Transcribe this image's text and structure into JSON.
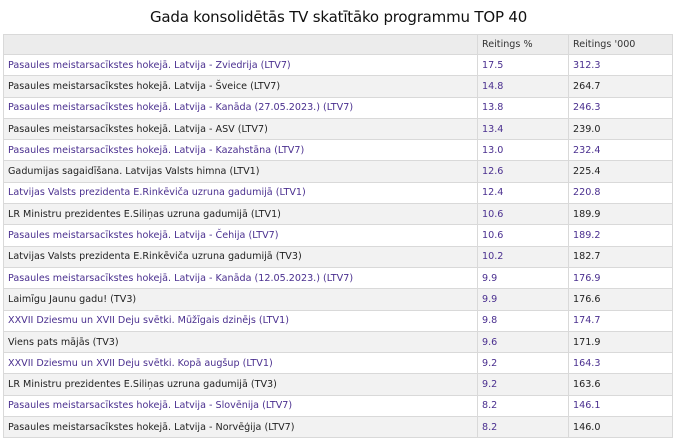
{
  "title": "Gada konsolidētās TV skatītāko programmu TOP 40",
  "colors": {
    "purple_text": "#4a2f8f",
    "dark_text": "#222222",
    "header_bg": "#ececec",
    "alt_row_bg": "#f2f2f2"
  },
  "table": {
    "headers": [
      "",
      "Reitings %",
      "Reitings '000"
    ],
    "rows": [
      {
        "name": "Pasaules meistarsacīkstes hokejā. Latvija - Zviedrija (LTV7)",
        "pct": "17.5",
        "thousands": "312.3",
        "color": "purple"
      },
      {
        "name": "Pasaules meistarsacīkstes hokejā. Latvija - Šveice (LTV7)",
        "pct": "14.8",
        "thousands": "264.7",
        "color": "dark"
      },
      {
        "name": "Pasaules meistarsacīkstes hokejā. Latvija - Kanāda (27.05.2023.) (LTV7)",
        "pct": "13.8",
        "thousands": "246.3",
        "color": "purple"
      },
      {
        "name": "Pasaules meistarsacīkstes hokejā. Latvija - ASV (LTV7)",
        "pct": "13.4",
        "thousands": "239.0",
        "color": "dark"
      },
      {
        "name": "Pasaules meistarsacīkstes hokejā. Latvija - Kazahstāna (LTV7)",
        "pct": "13.0",
        "thousands": "232.4",
        "color": "purple"
      },
      {
        "name": "Gadumijas sagaidīšana. Latvijas Valsts himna (LTV1)",
        "pct": "12.6",
        "thousands": "225.4",
        "color": "dark"
      },
      {
        "name": "Latvijas Valsts prezidenta E.Rinkēviča uzruna gadumijā (LTV1)",
        "pct": "12.4",
        "thousands": "220.8",
        "color": "purple"
      },
      {
        "name": "LR Ministru prezidentes E.Siliņas uzruna gadumijā (LTV1)",
        "pct": "10.6",
        "thousands": "189.9",
        "color": "dark"
      },
      {
        "name": "Pasaules meistarsacīkstes hokejā. Latvija - Čehija (LTV7)",
        "pct": "10.6",
        "thousands": "189.2",
        "color": "purple"
      },
      {
        "name": "Latvijas Valsts prezidenta E.Rinkēviča uzruna gadumijā (TV3)",
        "pct": "10.2",
        "thousands": "182.7",
        "color": "dark"
      },
      {
        "name": "Pasaules meistarsacīkstes hokejā. Latvija - Kanāda (12.05.2023.) (LTV7)",
        "pct": "9.9",
        "thousands": "176.9",
        "color": "purple"
      },
      {
        "name": "Laimīgu Jaunu gadu! (TV3)",
        "pct": "9.9",
        "thousands": "176.6",
        "color": "dark"
      },
      {
        "name": "XXVII Dziesmu un XVII Deju svētki. Mūžīgais dzinējs (LTV1)",
        "pct": "9.8",
        "thousands": "174.7",
        "color": "purple"
      },
      {
        "name": "Viens pats mājās (TV3)",
        "pct": "9.6",
        "thousands": "171.9",
        "color": "dark"
      },
      {
        "name": "XXVII Dziesmu un XVII Deju svētki. Kopā augšup (LTV1)",
        "pct": "9.2",
        "thousands": "164.3",
        "color": "purple"
      },
      {
        "name": "LR Ministru prezidentes E.Siliņas uzruna gadumijā (TV3)",
        "pct": "9.2",
        "thousands": "163.6",
        "color": "dark"
      },
      {
        "name": "Pasaules meistarsacīkstes hokejā. Latvija - Slovēnija (LTV7)",
        "pct": "8.2",
        "thousands": "146.1",
        "color": "purple"
      },
      {
        "name": "Pasaules meistarsacīkstes hokejā. Latvija - Norvēģija (LTV7)",
        "pct": "8.2",
        "thousands": "146.0",
        "color": "dark"
      }
    ]
  }
}
